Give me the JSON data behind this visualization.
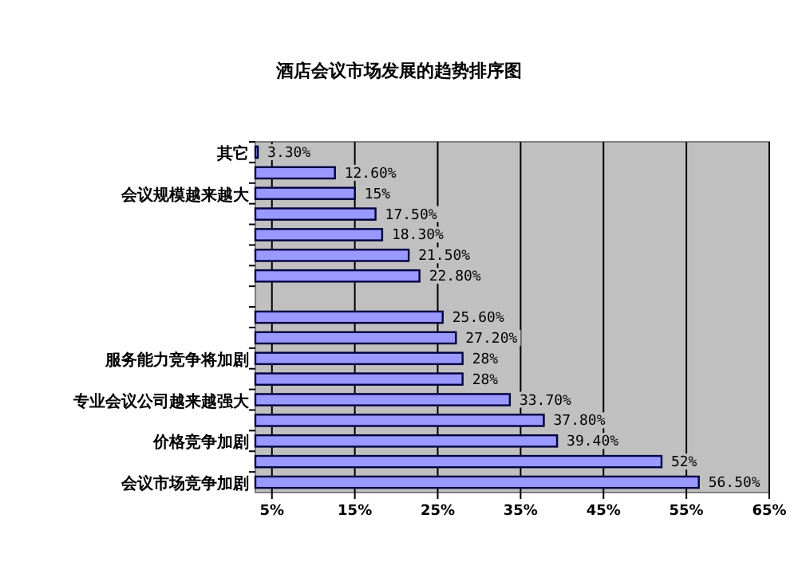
{
  "chart_data": {
    "type": "bar",
    "orientation": "horizontal",
    "title": "酒店会议市场发展的趋势排序图",
    "categories": [
      "其它",
      null,
      "会议规模越来越大",
      null,
      null,
      null,
      null,
      null,
      null,
      null,
      "服务能力竞争将加剧",
      null,
      "专业会议公司越来越强大",
      null,
      "价格竞争加剧",
      null,
      "会议市场竞争加剧"
    ],
    "series": [
      {
        "color": "#9999ff",
        "values": [
          3.3,
          12.6,
          15,
          17.5,
          18.3,
          21.5,
          22.8,
          null,
          25.6,
          27.2,
          28,
          28,
          33.7,
          37.8,
          39.4,
          52,
          56.5
        ],
        "value_labels": [
          "3.30%",
          "12.60%",
          "15%",
          "17.50%",
          "18.30%",
          "21.50%",
          "22.80%",
          null,
          "25.60%",
          "27.20%",
          "28%",
          "28%",
          "33.70%",
          "37.80%",
          "39.40%",
          "52%",
          "56.50%"
        ]
      }
    ],
    "xlim": [
      3,
      65
    ],
    "xticks": [
      {
        "value": 5,
        "label": "5%"
      },
      {
        "value": 15,
        "label": "15%"
      },
      {
        "value": 25,
        "label": "25%"
      },
      {
        "value": 35,
        "label": "35%"
      },
      {
        "value": 45,
        "label": "45%"
      },
      {
        "value": 55,
        "label": "55%"
      },
      {
        "value": 65,
        "label": "65%"
      }
    ],
    "grid": "x"
  }
}
